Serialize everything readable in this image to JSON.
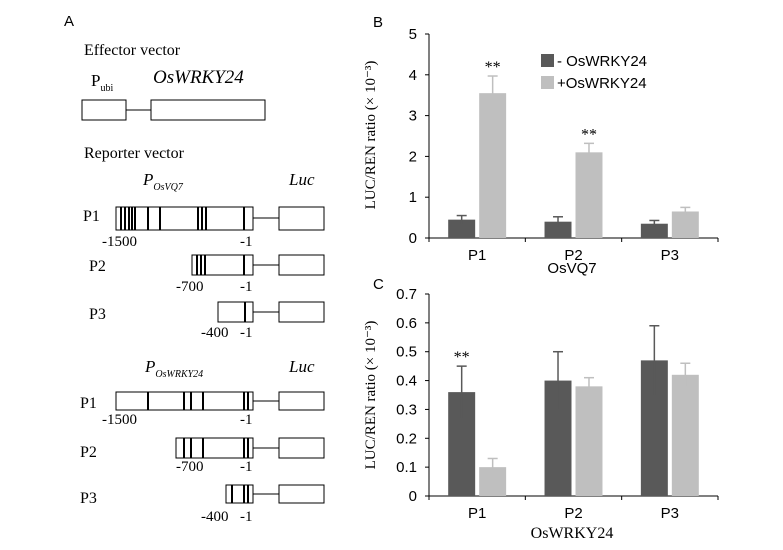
{
  "panel_a": {
    "letter": "A",
    "effector_title": "Effector vector",
    "pubi_main": "P",
    "pubi_sub": "ubi",
    "effector_gene": "OsWRKY24",
    "reporter_title": "Reporter vector",
    "upper_promoter_main": "P",
    "upper_promoter_sub": "OsVQ7",
    "upper_luc": "Luc",
    "upper_constructs": [
      {
        "name": "P1",
        "start": "-1500",
        "end": "-1"
      },
      {
        "name": "P2",
        "start": "-700",
        "end": "-1"
      },
      {
        "name": "P3",
        "start": "-400",
        "end": "-1"
      }
    ],
    "lower_promoter_main": "P",
    "lower_promoter_sub": "OsWRKY24",
    "lower_luc": "Luc",
    "lower_constructs": [
      {
        "name": "P1",
        "start": "-1500",
        "end": "-1"
      },
      {
        "name": "P2",
        "start": "-700",
        "end": "-1"
      },
      {
        "name": "P3",
        "start": "-400",
        "end": "-1"
      }
    ]
  },
  "colors": {
    "minus_series": "#595959",
    "plus_series": "#bfbfbf",
    "axis": "#000000"
  },
  "chart_data": [
    {
      "panel_letter": "B",
      "type": "bar",
      "categories": [
        "P1",
        "P2",
        "P3"
      ],
      "xlabel": "OsVQ7",
      "ylabel": "LUC/REN ratio (× 10⁻³)",
      "ylim": [
        0,
        5
      ],
      "yticks": [
        "0",
        "1",
        "2",
        "3",
        "4",
        "5"
      ],
      "legend": [
        "- OsWRKY24",
        "+OsWRKY24"
      ],
      "legend_position": "top-right",
      "grid": false,
      "series": [
        {
          "name": "- OsWRKY24",
          "values": [
            0.45,
            0.4,
            0.35
          ],
          "errors": [
            0.1,
            0.12,
            0.08
          ]
        },
        {
          "name": "+OsWRKY24",
          "values": [
            3.55,
            2.1,
            0.65
          ],
          "errors": [
            0.42,
            0.22,
            0.1
          ]
        }
      ],
      "annotations": [
        {
          "category": "P1",
          "series": 1,
          "text": "**"
        },
        {
          "category": "P2",
          "series": 1,
          "text": "**"
        }
      ]
    },
    {
      "panel_letter": "C",
      "type": "bar",
      "categories": [
        "P1",
        "P2",
        "P3"
      ],
      "xlabel": "OsWRKY24",
      "ylabel": "LUC/REN ratio (× 10⁻³)",
      "ylim": [
        0,
        0.7
      ],
      "yticks": [
        "0",
        "0.1",
        "0.2",
        "0.3",
        "0.4",
        "0.5",
        "0.6",
        "0.7"
      ],
      "legend": [],
      "grid": false,
      "series": [
        {
          "name": "- OsWRKY24",
          "values": [
            0.36,
            0.4,
            0.47
          ],
          "errors": [
            0.09,
            0.1,
            0.12
          ]
        },
        {
          "name": "+OsWRKY24",
          "values": [
            0.1,
            0.38,
            0.42
          ],
          "errors": [
            0.03,
            0.03,
            0.04
          ]
        }
      ],
      "annotations": [
        {
          "category": "P1",
          "series": 0,
          "text": "**"
        }
      ]
    }
  ]
}
